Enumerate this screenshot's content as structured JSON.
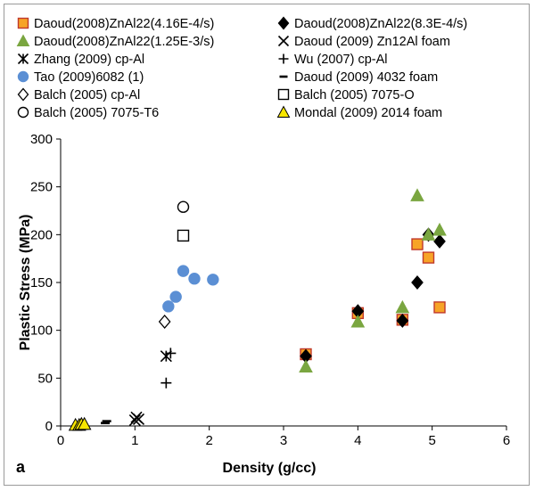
{
  "chart_data": {
    "type": "scatter",
    "panel_label": "a",
    "xlabel": "Density (g/cc)",
    "ylabel": "Plastic Stress (MPa)",
    "xlim": [
      0,
      6
    ],
    "ylim": [
      0,
      300
    ],
    "x_ticks": [
      0,
      1,
      2,
      3,
      4,
      5,
      6
    ],
    "y_ticks": [
      0,
      50,
      100,
      150,
      200,
      250,
      300
    ],
    "grid": false,
    "legend_position": "top",
    "series": [
      {
        "name": "Daoud(2008)ZnAl22(4.16E-4/s)",
        "marker": "square",
        "fill": "#f7a427",
        "stroke": "#c0392b",
        "points": [
          [
            3.3,
            75
          ],
          [
            4.0,
            118
          ],
          [
            4.6,
            111
          ],
          [
            4.8,
            190
          ],
          [
            4.95,
            176
          ],
          [
            5.1,
            124
          ]
        ]
      },
      {
        "name": "Daoud(2008)ZnAl22(8.3E-4/s)",
        "marker": "diamond",
        "fill": "#000000",
        "stroke": "#000000",
        "points": [
          [
            3.3,
            73
          ],
          [
            4.0,
            120
          ],
          [
            4.6,
            110
          ],
          [
            4.8,
            150
          ],
          [
            4.95,
            200
          ],
          [
            5.1,
            193
          ]
        ]
      },
      {
        "name": "Daoud(2008)ZnAl22(1.25E-3/s)",
        "marker": "triangle",
        "fill": "#7aa640",
        "stroke": "#7aa640",
        "points": [
          [
            3.3,
            62
          ],
          [
            4.0,
            109
          ],
          [
            4.6,
            124
          ],
          [
            4.8,
            241
          ],
          [
            4.95,
            200
          ],
          [
            5.1,
            205
          ]
        ]
      },
      {
        "name": "Daoud (2009) Zn12Al foam",
        "marker": "x",
        "fill": "none",
        "stroke": "#000000",
        "points": [
          [
            1.0,
            6
          ],
          [
            1.02,
            9
          ],
          [
            1.05,
            7
          ]
        ]
      },
      {
        "name": "Zhang (2009) cp-Al",
        "marker": "asterisk",
        "fill": "none",
        "stroke": "#000000",
        "points": [
          [
            1.42,
            73
          ]
        ]
      },
      {
        "name": "Wu (2007) cp-Al",
        "marker": "plus",
        "fill": "none",
        "stroke": "#000000",
        "points": [
          [
            1.42,
            45
          ],
          [
            1.48,
            76
          ]
        ]
      },
      {
        "name": "Tao (2009)6082 (1)",
        "marker": "circle",
        "fill": "#5b8fd4",
        "stroke": "#5b8fd4",
        "points": [
          [
            1.45,
            125
          ],
          [
            1.55,
            135
          ],
          [
            1.65,
            162
          ],
          [
            1.8,
            154
          ],
          [
            2.05,
            153
          ]
        ]
      },
      {
        "name": "Daoud (2009) 4032 foam",
        "marker": "dash",
        "fill": "none",
        "stroke": "#000000",
        "points": [
          [
            0.6,
            3
          ],
          [
            0.62,
            5
          ]
        ]
      },
      {
        "name": "Balch (2005) cp-Al",
        "marker": "diamond-open",
        "fill": "#ffffff",
        "stroke": "#000000",
        "points": [
          [
            1.4,
            109
          ]
        ]
      },
      {
        "name": "Balch (2005) 7075-O",
        "marker": "square-open",
        "fill": "#ffffff",
        "stroke": "#000000",
        "points": [
          [
            1.65,
            199
          ]
        ]
      },
      {
        "name": "Balch (2005) 7075-T6",
        "marker": "circle-open",
        "fill": "#ffffff",
        "stroke": "#000000",
        "points": [
          [
            1.65,
            229
          ]
        ]
      },
      {
        "name": "Mondal (2009) 2014 foam",
        "marker": "triangle",
        "fill": "#f7e600",
        "stroke": "#000000",
        "points": [
          [
            0.2,
            1
          ],
          [
            0.25,
            1
          ],
          [
            0.28,
            2
          ],
          [
            0.32,
            2
          ]
        ]
      }
    ]
  }
}
